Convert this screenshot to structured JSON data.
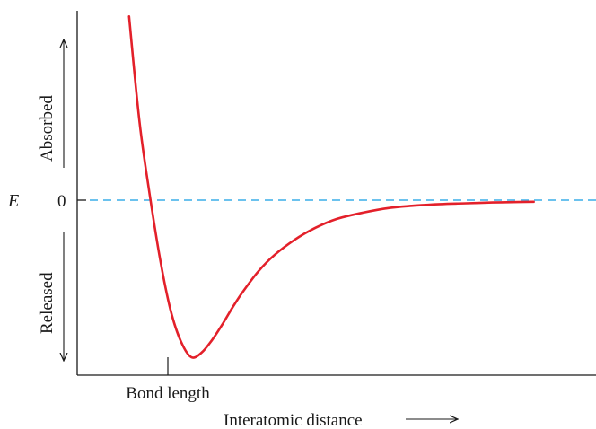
{
  "chart_data": {
    "type": "line",
    "title": "",
    "xlabel": "Interatomic distance",
    "ylabel": "E",
    "y_zero_label": "0",
    "y_up_label": "Absorbed",
    "y_down_label": "Released",
    "x_tick_label": "Bond length",
    "zero_reference_line": {
      "value": 0,
      "style": "dashed",
      "color": "#3aaee8"
    },
    "curve_color": "#e3202a",
    "axis_color": "#1a1a1a",
    "grid": false,
    "legend": "none",
    "series": [
      {
        "x": [
          0.1,
          0.12,
          0.14,
          0.16,
          0.18,
          0.2,
          0.22,
          0.24,
          0.26,
          0.28,
          0.3,
          0.32,
          0.35,
          0.38,
          0.42,
          0.46,
          0.5,
          0.55,
          0.6,
          0.65,
          0.7,
          0.75,
          0.8,
          0.85,
          0.88
        ],
        "y": [
          1.17,
          0.5,
          0.03,
          -0.38,
          -0.7,
          -0.9,
          -1.0,
          -0.97,
          -0.89,
          -0.79,
          -0.68,
          -0.58,
          -0.45,
          -0.35,
          -0.25,
          -0.175,
          -0.12,
          -0.08,
          -0.05,
          -0.035,
          -0.025,
          -0.02,
          -0.015,
          -0.012,
          -0.01
        ]
      }
    ]
  }
}
